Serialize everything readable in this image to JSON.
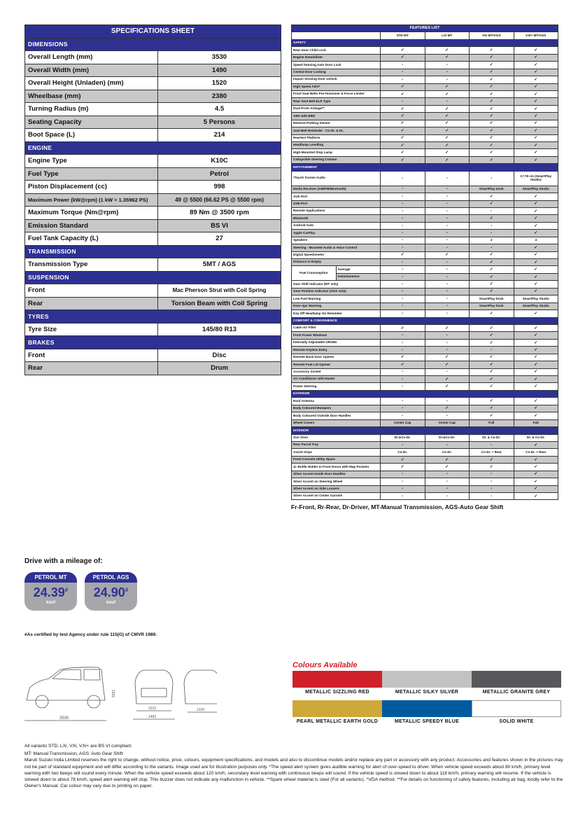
{
  "spec": {
    "title": "SPECIFICATIONS SHEET",
    "sections": [
      {
        "name": "DIMENSIONS",
        "rows": [
          [
            "Overall Length (mm)",
            "3530"
          ],
          [
            "Overall Width (mm)",
            "1490"
          ],
          [
            "Overall Height (Unladen) (mm)",
            "1520"
          ],
          [
            "Wheelbase (mm)",
            "2380"
          ],
          [
            "Turning Radius (m)",
            "4.5"
          ],
          [
            "Seating Capacity",
            "5 Persons"
          ],
          [
            "Boot Space (L)",
            "214"
          ]
        ]
      },
      {
        "name": "ENGINE",
        "rows": [
          [
            "Engine Type",
            "K10C"
          ],
          [
            "Fuel Type",
            "Petrol"
          ],
          [
            "Piston Displacement (cc)",
            "998"
          ],
          [
            "Maximum Power (kW@rpm) (1 kW = 1.35962 PS)",
            "49 @ 5500 (66.62 PS @ 5500 rpm)"
          ],
          [
            "Maximum Torque (Nm@rpm)",
            "89 Nm @ 3500 rpm"
          ],
          [
            "Emission Standard",
            "BS VI"
          ],
          [
            "Fuel Tank Capacity (L)",
            "27"
          ]
        ]
      },
      {
        "name": "TRANSMISSION",
        "rows": [
          [
            "Transmission Type",
            "5MT / AGS"
          ]
        ]
      },
      {
        "name": "SUSPENSION",
        "rows": [
          [
            "Front",
            "Mac Pherson Strut with Coil Spring"
          ],
          [
            "Rear",
            "Torsion Beam with Coil Spring"
          ]
        ]
      },
      {
        "name": "TYRES",
        "rows": [
          [
            "Tyre Size",
            "145/80 R13"
          ]
        ]
      },
      {
        "name": "BRAKES",
        "rows": [
          [
            "Front",
            "Disc"
          ],
          [
            "Rear",
            "Drum"
          ]
        ]
      }
    ]
  },
  "features": {
    "title": "FEATURES LIST",
    "variants": [
      "STD MT",
      "LXi MT",
      "VXi MT/AGS",
      "VXi+ MT/AGS"
    ],
    "sections": [
      {
        "name": "SAFETY",
        "rows": [
          [
            "Rear Door Child Lock",
            "✓",
            "✓",
            "✓",
            "✓"
          ],
          [
            "Engine Immobilizer",
            "✓",
            "✓",
            "✓",
            "✓"
          ],
          [
            "Speed Sensing Auto Door Lock",
            "-",
            "-",
            "✓",
            "✓"
          ],
          [
            "Central Door Locking",
            "-",
            "-",
            "✓",
            "✓"
          ],
          [
            "Impact Sensing Door Unlock",
            "-",
            "-",
            "✓",
            "✓"
          ],
          [
            "High Speed Alert*",
            "✓",
            "✓",
            "✓",
            "✓"
          ],
          [
            "Front Seat Belts Pre-Tensioner & Force Limiter",
            "✓",
            "✓",
            "✓",
            "✓"
          ],
          [
            "Rear Seat Belt ELR Type",
            "-",
            "-",
            "✓",
            "✓"
          ],
          [
            "Dual Front Airbags**",
            "✓",
            "✓",
            "✓",
            "✓"
          ],
          [
            "ABS with EBD",
            "✓",
            "✓",
            "✓",
            "✓"
          ],
          [
            "Reverse Parking Sensor",
            "✓",
            "✓",
            "✓",
            "✓"
          ],
          [
            "Seat Belt Reminder - Co-Dr. & Dr.",
            "✓",
            "✓",
            "✓",
            "✓"
          ],
          [
            "Heartect Platform",
            "✓",
            "✓",
            "✓",
            "✓"
          ],
          [
            "Headlamp Levelling",
            "✓",
            "✓",
            "✓",
            "✓"
          ],
          [
            "High-Mounted Stop Lamp",
            "✓",
            "✓",
            "✓",
            "✓"
          ],
          [
            "Collapsible Steering Column",
            "✓",
            "✓",
            "✓",
            "✓"
          ]
        ]
      },
      {
        "name": "INFOTAINMENT",
        "rows": [
          [
            "*Touch Screen Audio",
            "-",
            "-",
            "-",
            "17.78 cm (SmartPlay Studio)"
          ],
          [
            "Media Receiver (AM/FM/Bluetooth)",
            "-",
            "-",
            "SmartPlay Dock",
            "SmartPlay Studio"
          ],
          [
            "AUX Port",
            "-",
            "-",
            "✓",
            "✓"
          ],
          [
            "USB Port",
            "-",
            "-",
            "✓",
            "✓"
          ],
          [
            "Remote Applications",
            "-",
            "-",
            "-",
            "✓"
          ],
          [
            "Bluetooth",
            "-",
            "-",
            "✓",
            "✓"
          ],
          [
            "Android Auto",
            "-",
            "-",
            "-",
            "✓"
          ],
          [
            "Apple CarPlay",
            "-",
            "-",
            "-",
            "✓"
          ],
          [
            "Speakers",
            "-",
            "-",
            "2",
            "4"
          ],
          [
            "Steering - Mounted Audio & Voice Control",
            "-",
            "-",
            "-",
            "✓"
          ],
          [
            "Digital Speedometer",
            "✓",
            "✓",
            "✓",
            "✓"
          ],
          [
            "Distance to Empty",
            "-",
            "-",
            "✓",
            "✓"
          ],
          [
            "Fuel Consumption|Average",
            "-",
            "-",
            "✓",
            "✓"
          ],
          [
            "Fuel Consumption|Instantaneous",
            "-",
            "-",
            "✓",
            "✓"
          ],
          [
            "Gear Shift Indicator (MT only)",
            "-",
            "-",
            "✓",
            "✓"
          ],
          [
            "Gear Position Indicator (AGS only)",
            "-",
            "-",
            "✓",
            "✓"
          ],
          [
            "Low Fuel Warning",
            "-",
            "-",
            "SmartPlay Dock",
            "SmartPlay Studio"
          ],
          [
            "Door Ajar Warning",
            "-",
            "-",
            "SmartPlay Dock",
            "SmartPlay Studio"
          ],
          [
            "Key Off Headlamp On Reminder",
            "-",
            "-",
            "✓",
            "✓"
          ]
        ]
      },
      {
        "name": "COMFORT & CONVENIENCE",
        "rows": [
          [
            "Cabin Air Filter",
            "✓",
            "✓",
            "✓",
            "✓"
          ],
          [
            "Front Power Windows",
            "-",
            "-",
            "✓",
            "✓"
          ],
          [
            "Internally Adjustable ORVMs",
            "-",
            "-",
            "✓",
            "✓"
          ],
          [
            "Remote Keyless Entry",
            "-",
            "-",
            "-",
            "✓"
          ],
          [
            "Remote Back Door Opener",
            "✓",
            "✓",
            "✓",
            "✓"
          ],
          [
            "Remote Fuel Lid Opener",
            "✓",
            "✓",
            "✓",
            "✓"
          ],
          [
            "Accessory Socket",
            "-",
            "-",
            "✓",
            "✓"
          ],
          [
            "Air Conditioner with Heater",
            "-",
            "✓",
            "✓",
            "✓"
          ],
          [
            "Power Steering",
            "-",
            "✓",
            "✓",
            "✓"
          ]
        ]
      },
      {
        "name": "EXTERIOR",
        "rows": [
          [
            "Roof Antenna",
            "-",
            "-",
            "✓",
            "✓"
          ],
          [
            "Body Coloured Bumpers",
            "-",
            "✓",
            "✓",
            "✓"
          ],
          [
            "Body Coloured Outside Door Handles",
            "-",
            "-",
            "✓",
            "✓"
          ],
          [
            "Wheel Covers",
            "Center Cap",
            "Center Cap",
            "Full",
            "Full"
          ]
        ]
      },
      {
        "name": "INTERIOR",
        "rows": [
          [
            "Sun Visor",
            "Dr.&Co-Dr.",
            "Dr.&Co-Dr.",
            "Dr. & Co-Dr.",
            "Dr. & Co-Dr."
          ],
          [
            "Rear Parcel Tray",
            "-",
            "-",
            "-",
            "✓"
          ],
          [
            "Assist Grips",
            "Co-Dr.",
            "Co-Dr.",
            "Co-Dr. + Rear",
            "Co-Dr. + Rear"
          ],
          [
            "Front Console Utility Space",
            "✓",
            "✓",
            "✓",
            "✓"
          ],
          [
            "1L Bottle Holder in Front Doors with Map Pockets",
            "✓",
            "✓",
            "✓",
            "✓"
          ],
          [
            "Silver Accent Inside Door Handles",
            "-",
            "-",
            "-",
            "✓"
          ],
          [
            "Silver Accent on Steering Wheel",
            "-",
            "-",
            "-",
            "✓"
          ],
          [
            "Silver Accent on Side Louvers",
            "-",
            "-",
            "-",
            "✓"
          ],
          [
            "Silver Accent on Center Garnish",
            "-",
            "-",
            "-",
            "✓"
          ]
        ]
      }
    ]
  },
  "abbreviations": "Fr-Front, Rr-Rear, Dr-Driver, MT-Manual Transmission, AGS-Auto Gear Shift",
  "mileage": {
    "title": "Drive with a mileage of:",
    "badges": [
      {
        "label": "PETROL MT",
        "value": "24.39",
        "mark": "#",
        "unit": "km/l"
      },
      {
        "label": "PETROL AGS",
        "value": "24.90",
        "mark": "#",
        "unit": "km/l"
      }
    ],
    "note": "#As certified by test Agency under rule 115(G) of CMVR 1989."
  },
  "dimensions_drawing": {
    "length": "3530",
    "height": "1520",
    "front_track": "1515",
    "width": "1490",
    "rear_track": "1320"
  },
  "colours": {
    "title": "Colours Available",
    "items": [
      {
        "name": "METALLIC SIZZLING RED",
        "hex": "#d0202a"
      },
      {
        "name": "METALLIC SILKY SILVER",
        "hex": "#c3c1c2"
      },
      {
        "name": "METALLIC GRANITE GREY",
        "hex": "#58585a"
      },
      {
        "name": "PEARL METALLIC EARTH GOLD",
        "hex": "#cfa83a"
      },
      {
        "name": "METALLIC SPEEDY BLUE",
        "hex": "#005aa0"
      },
      {
        "name": "SOLID WHITE",
        "hex": "#ffffff"
      }
    ]
  },
  "accent": "#2e3192",
  "footer": [
    "All variants STD, LXi, VXi, VXi+ are BS VI compliant.",
    "MT: Manual Transmission, AGS: Auto Gear Shift",
    "Maruti Suzuki India Limited reserves the right to change, without notice, price, colours, equipment specifications, and models and also to discontinue models and/or replace any part or accessory with any product. Accessories and features shown in the pictures may not be part of standard equipment and will differ according to the variants. Image used are for illustration purposes only. *The speed alert system gives audible warning for alert of over-speed to driver. When vehicle speed exceeds about 80 km/h, primary level warning with two beeps will sound every minute. When the vehicle speed exceeds about 120 km/h, secondary level warning with continuous beeps will sound. If the vehicle speed is slowed down to about 118 km/h, primary warning will resume. If the vehicle is slowed down to about 78 km/h, speed alert warning will stop. This buzzer does not indicate any malfunction in vehicle. **Spare wheel material is steel (For all variants). ^VDA method. **For details on functioning of safety features, including air bag, kindly refer to the Owner's Manual. Car colour may vary due to printing on paper."
  ]
}
